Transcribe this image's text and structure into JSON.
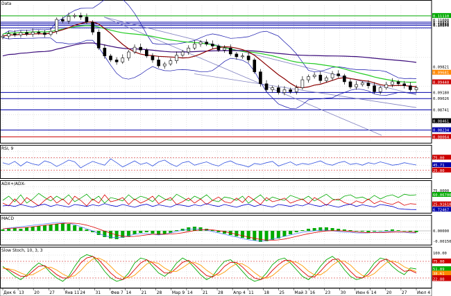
{
  "colors": {
    "upCandle": "#ffffff",
    "downCandle": "#000000",
    "ma_fast": "#8b0000",
    "ma_mid": "#22cc22",
    "ma_slow": "#3a0a7a",
    "bollinger": "#1010aa",
    "channel": "#8080c0",
    "rsi": "#3050e0",
    "adx_plus": "#00aa00",
    "adx_minus": "#dd0000",
    "adx": "#0000cc",
    "macd_hist": "#00aa00",
    "macd_line": "#5080ff",
    "macd_signal": "#dd0000",
    "stoch_k": "#00aa00",
    "stoch_d": "#dd0000",
    "stoch_slow": "#ff9900"
  },
  "chart_data": [
    {
      "type": "line",
      "panel": "price",
      "title": "Data",
      "dates": [
        "Дек 6",
        "13",
        "20",
        "27",
        "Янв 11",
        "24",
        "31",
        "Фев 7",
        "14",
        "21",
        "28",
        "Мар 9",
        "14",
        "21",
        "28",
        "Апр 4",
        "11",
        "18",
        "25",
        "Май 3",
        "16",
        "23",
        "30",
        "Июн 6",
        "14",
        "20",
        "27",
        "Июл 4"
      ],
      "ylim": [
        0.845,
        0.114
      ],
      "tick_labels": [
        "0.11110",
        "0.11000",
        "0.10950",
        "0.10910",
        "0.10870",
        "0.10881",
        "0.09821",
        "0.09681",
        "0.09440",
        "0.09180",
        "0.09026",
        "0.08741",
        "0.08461",
        "0.08234",
        "0.08064"
      ],
      "horizontal_levels": [
        {
          "label": "0.11110",
          "color": "#00aa00"
        },
        {
          "label": "0.10950",
          "color": "#0000aa"
        },
        {
          "label": "0.10910",
          "color": "#0000aa"
        },
        {
          "label": "0.10870",
          "color": "#0000aa"
        },
        {
          "label": "0.10881",
          "color": "#0000aa"
        },
        {
          "label": "0.09180",
          "color": "#0000aa"
        },
        {
          "label": "0.09026",
          "color": "#0000aa"
        },
        {
          "label": "0.08741",
          "color": "#0000aa"
        },
        {
          "label": "0.08234",
          "color": "#0000aa"
        },
        {
          "label": "0.08064",
          "color": "#cc0000"
        }
      ],
      "badges": [
        {
          "label": "0.11110",
          "bg": "#00aa00"
        },
        {
          "label": "0.09681",
          "bg": "#ff8800"
        },
        {
          "label": "0.09440",
          "bg": "#cc0000"
        },
        {
          "label": "0.08461",
          "bg": "#000000"
        },
        {
          "label": "0.08234",
          "bg": "#0000aa"
        },
        {
          "label": "0.08064",
          "bg": "#cc0000"
        }
      ],
      "close": [
        0.106,
        0.1066,
        0.1063,
        0.1069,
        0.1065,
        0.107,
        0.1068,
        0.1064,
        0.1072,
        0.1102,
        0.1098,
        0.111,
        0.1112,
        0.1108,
        0.1095,
        0.107,
        0.103,
        0.101,
        0.1,
        0.0995,
        0.1005,
        0.102,
        0.1032,
        0.1025,
        0.101,
        0.1,
        0.0985,
        0.099,
        0.0998,
        0.1012,
        0.102,
        0.103,
        0.104,
        0.1045,
        0.104,
        0.1035,
        0.1025,
        0.103,
        0.1015,
        0.1008,
        0.101,
        0.1,
        0.097,
        0.094,
        0.0925,
        0.093,
        0.0918,
        0.0925,
        0.092,
        0.093,
        0.095,
        0.0958,
        0.0962,
        0.0948,
        0.0955,
        0.0965,
        0.096,
        0.0945,
        0.0932,
        0.0938,
        0.0942,
        0.0935,
        0.092,
        0.093,
        0.0938,
        0.0945,
        0.094,
        0.0935,
        0.0925,
        0.093
      ],
      "series_names": [
        "MA fast",
        "MA mid",
        "MA slow",
        "Bollinger upper",
        "Bollinger lower"
      ]
    },
    {
      "type": "line",
      "panel": "rsi",
      "title": "RSI, 9",
      "tick_labels": [
        "75.00",
        "45.71",
        "25.00"
      ],
      "badges": [
        {
          "label": "75.00",
          "bg": "#cc0000"
        },
        {
          "label": "45.71",
          "bg": "#0000aa"
        },
        {
          "label": "25.00",
          "bg": "#cc0000"
        }
      ],
      "ylim": [
        0,
        100
      ],
      "values": [
        55,
        48,
        60,
        42,
        58,
        50,
        45,
        62,
        55,
        40,
        52,
        65,
        58,
        35,
        48,
        60,
        52,
        45,
        70,
        55,
        38,
        50,
        62,
        48,
        55,
        42,
        58,
        65,
        50,
        40,
        55,
        60,
        45,
        52,
        58,
        48,
        42,
        55,
        62,
        50,
        45,
        38,
        52,
        48,
        55,
        60,
        42,
        50,
        58,
        45,
        52,
        48,
        55,
        62,
        50,
        45,
        55,
        60,
        48,
        52,
        45,
        55,
        50,
        58,
        52,
        45,
        48,
        55,
        50,
        46
      ]
    },
    {
      "type": "line",
      "panel": "adx",
      "title": "ADX+/ADX-",
      "tick_labels": [
        "75.0000",
        "60.06700",
        "25.91610",
        "6.72467"
      ],
      "badges": [
        {
          "label": "60.06700",
          "bg": "#00aa00"
        },
        {
          "label": "25.91610",
          "bg": "#cc0000"
        },
        {
          "label": "6.72467",
          "bg": "#0000aa"
        }
      ],
      "ylim": [
        0,
        100
      ],
      "plus": [
        40,
        55,
        35,
        60,
        30,
        45,
        65,
        50,
        38,
        55,
        42,
        60,
        35,
        48,
        62,
        40,
        55,
        30,
        50,
        45,
        38,
        60,
        42,
        55,
        48,
        35,
        58,
        45,
        40,
        62,
        50,
        38,
        55,
        45,
        60,
        40,
        35,
        52,
        48,
        40,
        55,
        30,
        45,
        60,
        38,
        52,
        45,
        40,
        58,
        50,
        42,
        55,
        38,
        50,
        62,
        45,
        40,
        55,
        60,
        48,
        52,
        42,
        58,
        45,
        55,
        60,
        50,
        62,
        58,
        60
      ],
      "minus": [
        30,
        20,
        45,
        25,
        50,
        35,
        20,
        40,
        55,
        30,
        45,
        25,
        55,
        40,
        20,
        45,
        30,
        60,
        35,
        40,
        50,
        25,
        45,
        30,
        40,
        55,
        28,
        40,
        50,
        25,
        35,
        48,
        30,
        45,
        25,
        40,
        52,
        35,
        30,
        48,
        32,
        55,
        40,
        25,
        50,
        35,
        40,
        48,
        30,
        38,
        45,
        28,
        50,
        38,
        22,
        40,
        45,
        32,
        25,
        38,
        30,
        45,
        28,
        38,
        30,
        25,
        35,
        22,
        28,
        26
      ],
      "adx": [
        20,
        22,
        18,
        25,
        20,
        15,
        22,
        26,
        18,
        24,
        20,
        16,
        25,
        22,
        18,
        24,
        20,
        28,
        22,
        18,
        25,
        20,
        15,
        22,
        26,
        18,
        24,
        20,
        16,
        25,
        22,
        18,
        24,
        20,
        28,
        22,
        18,
        25,
        20,
        15,
        22,
        26,
        18,
        24,
        20,
        16,
        25,
        22,
        18,
        24,
        20,
        28,
        22,
        18,
        25,
        20,
        15,
        22,
        26,
        18,
        24,
        20,
        16,
        25,
        22,
        18,
        10,
        8,
        7,
        6.7
      ]
    },
    {
      "type": "bar",
      "panel": "macd",
      "title": "MACD",
      "tick_labels": [
        "0.00000",
        "-0.00150"
      ],
      "ylim": [
        -0.002,
        0.002
      ],
      "hist": [
        0.0002,
        0.0003,
        0.0004,
        0.0003,
        0.0005,
        0.0006,
        0.0007,
        0.0008,
        0.0009,
        0.001,
        0.0011,
        0.001,
        0.0008,
        0.0005,
        0.0002,
        -0.0002,
        -0.0006,
        -0.0009,
        -0.0011,
        -0.0012,
        -0.001,
        -0.0008,
        -0.0005,
        -0.0003,
        -0.0002,
        -0.0004,
        -0.0006,
        -0.0005,
        -0.0003,
        0.0001,
        0.0003,
        0.0005,
        0.0006,
        0.0005,
        0.0003,
        0.0001,
        -0.0002,
        -0.0004,
        -0.0006,
        -0.0008,
        -0.001,
        -0.0012,
        -0.0014,
        -0.0016,
        -0.0015,
        -0.0013,
        -0.0011,
        -0.0008,
        -0.0005,
        -0.0002,
        0.0001,
        0.0003,
        0.0004,
        0.0005,
        0.0005,
        0.0004,
        0.0003,
        0.0002,
        0.0001,
        0.0,
        -0.0001,
        -0.0002,
        -0.0001,
        0.0,
        0.0001,
        0.0002,
        0.0001,
        0.0,
        -0.0001,
        -0.0002
      ],
      "line": [
        0.0003,
        0.0004,
        0.0005,
        0.0006,
        0.0007,
        0.0008,
        0.0009,
        0.001,
        0.0011,
        0.0012,
        0.0012,
        0.0011,
        0.0009,
        0.0006,
        0.0003,
        0.0,
        -0.0004,
        -0.0007,
        -0.0009,
        -0.001,
        -0.0009,
        -0.0007,
        -0.0005,
        -0.0004,
        -0.0004,
        -0.0005,
        -0.0006,
        -0.0005,
        -0.0003,
        -0.0001,
        0.0001,
        0.0002,
        0.0003,
        0.0002,
        0.0001,
        -0.0001,
        -0.0003,
        -0.0005,
        -0.0007,
        -0.0009,
        -0.0011,
        -0.0013,
        -0.0014,
        -0.0015,
        -0.0014,
        -0.0012,
        -0.001,
        -0.0008,
        -0.0006,
        -0.0004,
        -0.0002,
        -0.0001,
        0.0,
        0.0001,
        0.0001,
        0.0,
        -0.0001,
        -0.0002,
        -0.0002,
        -0.0003,
        -0.0003,
        -0.0003,
        -0.0002,
        -0.0002,
        -0.0001,
        -0.0001,
        -0.0002,
        -0.0002,
        -0.0003,
        -0.0003
      ]
    },
    {
      "type": "line",
      "panel": "stoch",
      "title": "Slow Stoch, 10, 3, 3",
      "tick_labels": [
        "100.00",
        "75.00",
        "51.89",
        "38.61",
        "25.00",
        "22.00"
      ],
      "badges": [
        {
          "label": "75.00",
          "bg": "#cc0000"
        },
        {
          "label": "51.89",
          "bg": "#00aa00"
        },
        {
          "label": "38.61",
          "bg": "#ff8800"
        },
        {
          "label": "25.00",
          "bg": "#cc0000"
        },
        {
          "label": "22.00",
          "bg": "#cc0000"
        }
      ],
      "ylim": [
        0,
        100
      ],
      "k": [
        60,
        45,
        30,
        20,
        35,
        55,
        70,
        60,
        40,
        25,
        15,
        30,
        60,
        85,
        95,
        90,
        70,
        45,
        25,
        15,
        20,
        40,
        70,
        85,
        80,
        60,
        40,
        30,
        45,
        70,
        85,
        75,
        55,
        35,
        20,
        30,
        55,
        75,
        80,
        65,
        45,
        25,
        15,
        20,
        40,
        65,
        80,
        85,
        70,
        50,
        30,
        20,
        35,
        60,
        80,
        90,
        75,
        50,
        30,
        20,
        25,
        45,
        70,
        85,
        80,
        60,
        45,
        35,
        55,
        52
      ],
      "d": [
        55,
        50,
        40,
        30,
        30,
        45,
        60,
        62,
        50,
        35,
        25,
        25,
        45,
        70,
        85,
        90,
        80,
        60,
        40,
        25,
        20,
        30,
        50,
        70,
        80,
        70,
        55,
        40,
        40,
        55,
        72,
        78,
        65,
        48,
        32,
        28,
        40,
        60,
        72,
        72,
        58,
        40,
        25,
        20,
        28,
        48,
        65,
        78,
        78,
        62,
        45,
        30,
        28,
        45,
        65,
        80,
        82,
        65,
        45,
        28,
        25,
        35,
        55,
        75,
        82,
        72,
        58,
        45,
        48,
        40
      ]
    }
  ]
}
